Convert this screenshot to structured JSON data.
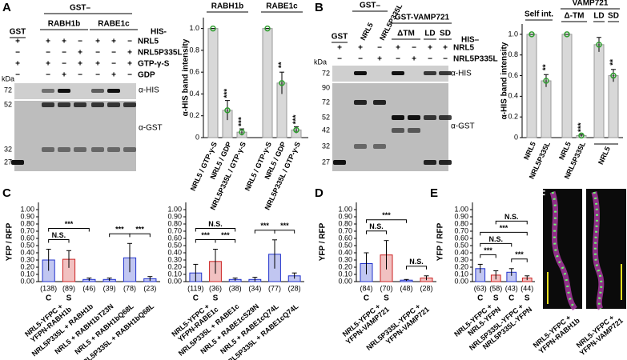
{
  "blots": [
    {
      "letter": "A",
      "top_label": "GST–",
      "column_headers": [
        "GST",
        "RABH1b",
        "RABE1c"
      ],
      "bait": "HIS-",
      "rows": [
        {
          "label": "NRL5",
          "signs": [
            "+",
            "+",
            "+",
            "−",
            "+",
            "+",
            "−"
          ]
        },
        {
          "label": "NRL5P335L",
          "signs": [
            "−",
            "−",
            "−",
            "+",
            "−",
            "−",
            "+"
          ]
        },
        {
          "label": "GTP-γ-S",
          "signs": [
            "+",
            "+",
            "−",
            "+",
            "+",
            "−",
            "+"
          ]
        },
        {
          "label": "GDP",
          "signs": [
            "−",
            "−",
            "+",
            "−",
            "−",
            "+",
            "−"
          ]
        }
      ],
      "kda": "kDa",
      "his_markers": [
        72
      ],
      "gst_markers": [
        52,
        32,
        27
      ],
      "antibodies": [
        "α-HIS",
        "α-GST"
      ]
    },
    {
      "letter": "B",
      "top_label": "GST–",
      "column_headers": [
        "GST",
        "NRL5",
        "NRL5P335L",
        "GST-VAMP721",
        "ΔTM",
        "LD",
        "SD"
      ],
      "bait": "HIS–",
      "rows": [
        {
          "label": "NRL5",
          "signs": [
            "+",
            "+",
            "−",
            "+",
            "−",
            "+",
            "+"
          ]
        },
        {
          "label": "NRL5P335L",
          "signs": [
            "−",
            "−",
            "+",
            "−",
            "+",
            "−",
            "−"
          ]
        }
      ],
      "kda": "kDa",
      "his_markers": [
        72
      ],
      "gst_markers": [
        90,
        72,
        52,
        42,
        32,
        27
      ],
      "antibodies": [
        "α-HIS",
        "α-GST"
      ]
    }
  ],
  "chart_data": [
    {
      "type": "bar",
      "group_titles": [
        "RABH1b",
        "RABE1c"
      ],
      "ylabel": "α-HIS band intensity",
      "categories": [
        "NRL5 / GTP-γ-S",
        "NRL5 / GDP",
        "NRL5P335L / GTP-γ-S",
        "NRL5 / GTP-γ-S",
        "NRL5 / GDP",
        "NRL5P335L / GTP-γ-S"
      ],
      "values": [
        1.0,
        0.25,
        0.05,
        1.0,
        0.5,
        0.07
      ],
      "errors": [
        0,
        0.09,
        0.03,
        0,
        0.1,
        0.03
      ],
      "annotations": [
        null,
        "***",
        "***",
        null,
        "**",
        "***"
      ],
      "color": "#2e9e2e",
      "ylim": [
        0,
        1.1
      ],
      "yticks": [
        0,
        0.2,
        0.4,
        0.6,
        0.8,
        {
          "value": 1,
          "label": "1.0"
        }
      ]
    },
    {
      "type": "bar",
      "group_titles": [
        "Self int.",
        "VAMP721"
      ],
      "subgroup_titles": [
        "Δ-TM",
        "LD",
        "SD"
      ],
      "ylabel": "α-HIS band intensity",
      "categories": [
        "NRL5",
        "NRL5P335L",
        "NRL5",
        "NRL5P335L",
        null,
        null
      ],
      "group_label": "NRL5",
      "values": [
        1.0,
        0.55,
        1.0,
        0.02,
        0.9,
        0.6
      ],
      "errors": [
        0,
        0.06,
        0,
        0.01,
        0.07,
        0.06
      ],
      "annotations": [
        null,
        "**",
        null,
        "***",
        null,
        "**"
      ],
      "color": "#2e9e2e",
      "ylim": [
        0,
        1.1
      ],
      "yticks": [
        0,
        0.2,
        0.4,
        0.6,
        0.8,
        {
          "value": 1,
          "label": "1.0"
        }
      ]
    },
    {
      "type": "bar",
      "panel": "C",
      "ylabel": "YFP / RFP",
      "categories": [
        [
          "NRL5-YFPC +",
          "YFPN-RABH1b"
        ],
        null,
        "NRL5P335L + RABH1b",
        "NRL5 + RABH1bT23N",
        "NRL5 + RABH1bQ68L",
        "NRL5P335L + RABH1bQ68L"
      ],
      "sublabels": [
        "C",
        "S",
        null,
        null,
        null,
        null
      ],
      "n_labels": [
        "(138)",
        "(89)",
        "(46)",
        "(39)",
        "(78)",
        "(23)"
      ],
      "values": [
        0.3,
        0.31,
        0.03,
        0.03,
        0.33,
        0.04
      ],
      "errors": [
        0.15,
        0.12,
        0.02,
        0.02,
        0.2,
        0.03
      ],
      "colors": [
        "#2233cc",
        "#cc2222",
        "#2233cc",
        "#2233cc",
        "#2233cc",
        "#2233cc"
      ],
      "brackets": [
        {
          "label": "N.S.",
          "from": 0,
          "to": 1
        },
        {
          "label": "***",
          "from": 0,
          "to": 2
        },
        {
          "label": "***",
          "from": 3,
          "to": 4
        },
        {
          "label": "***",
          "from": 4,
          "to": 5
        }
      ],
      "ylim": [
        0,
        1.1
      ],
      "yticks": [
        {
          "value": 0,
          "label": "0.00"
        },
        {
          "value": 0.1,
          "label": "0.10"
        },
        {
          "value": 0.2,
          "label": "0.20"
        },
        {
          "value": 0.3,
          "label": "0.30"
        },
        {
          "value": 0.4,
          "label": "0.40"
        },
        {
          "value": 0.5,
          "label": "0.50"
        },
        {
          "value": 0.6,
          "label": "0.60"
        },
        {
          "value": 0.7,
          "label": "0.70"
        },
        {
          "value": 0.8,
          "label": "0.80"
        },
        {
          "value": 0.9,
          "label": "0.90"
        },
        {
          "value": 1,
          "label": "1.00"
        }
      ]
    },
    {
      "type": "bar",
      "categories": [
        [
          "NRL5-YFPC +",
          "YFPN-RABE1c"
        ],
        null,
        "NRL5P335L + RABE1c",
        "NRL5 + RABE1cS29N",
        "NRL5 + RABE1cQ74L",
        "NRL5P335L + RABE1cQ74L"
      ],
      "sublabels": [
        "C",
        "S",
        null,
        null,
        null,
        null
      ],
      "n_labels": [
        "(119)",
        "(36)",
        "(38)",
        "(34)",
        "(77)",
        "(28)"
      ],
      "values": [
        0.12,
        0.28,
        0.03,
        0.03,
        0.38,
        0.08
      ],
      "errors": [
        0.12,
        0.17,
        0.02,
        0.03,
        0.2,
        0.04
      ],
      "colors": [
        "#2233cc",
        "#cc2222",
        "#2233cc",
        "#2233cc",
        "#2233cc",
        "#2233cc"
      ],
      "brackets": [
        {
          "label": "***",
          "from": 0,
          "to": 1
        },
        {
          "label": "***",
          "from": 1,
          "to": 2
        },
        {
          "label": "N.S.",
          "from": 0,
          "to": 2
        },
        {
          "label": "***",
          "from": 3,
          "to": 4
        },
        {
          "label": "***",
          "from": 4,
          "to": 5
        }
      ],
      "ylim": [
        0,
        1.1
      ],
      "yticks": [
        {
          "value": 0,
          "label": "0.00"
        },
        {
          "value": 0.1,
          "label": "0.10"
        },
        {
          "value": 0.2,
          "label": "0.20"
        },
        {
          "value": 0.3,
          "label": "0.30"
        },
        {
          "value": 0.4,
          "label": "0.40"
        },
        {
          "value": 0.5,
          "label": "0.50"
        },
        {
          "value": 0.6,
          "label": "0.60"
        },
        {
          "value": 0.7,
          "label": "0.70"
        },
        {
          "value": 0.8,
          "label": "0.80"
        },
        {
          "value": 0.9,
          "label": "0.90"
        },
        {
          "value": 1,
          "label": "1.00"
        }
      ]
    },
    {
      "type": "bar",
      "panel": "D",
      "ylabel": "YFP / RFP",
      "categories": [
        [
          "NRL5-YFPC +",
          "YFPN-VAMP721"
        ],
        null,
        [
          "NRL5P335L-YFPC +",
          "YFPN-VAMP721"
        ],
        null
      ],
      "sublabels": [
        "C",
        "S",
        null,
        null
      ],
      "n_labels": [
        "(84)",
        "(70)",
        "(48)",
        "(28)"
      ],
      "values": [
        0.25,
        0.37,
        0.02,
        0.05
      ],
      "errors": [
        0.15,
        0.2,
        0.01,
        0.03
      ],
      "colors": [
        "#2233cc",
        "#cc2222",
        "#2233cc",
        "#cc2222"
      ],
      "brackets": [
        {
          "label": "N.S.",
          "from": 0,
          "to": 1
        },
        {
          "label": "N.S.",
          "from": 2,
          "to": 3
        },
        {
          "label": "***",
          "from": 0,
          "to": 2
        }
      ],
      "ylim": [
        0,
        1.1
      ],
      "yticks": [
        {
          "value": 0,
          "label": "0.00"
        },
        {
          "value": 0.1,
          "label": "0.10"
        },
        {
          "value": 0.2,
          "label": "0.20"
        },
        {
          "value": 0.3,
          "label": "0.30"
        },
        {
          "value": 0.4,
          "label": "0.40"
        },
        {
          "value": 0.5,
          "label": "0.50"
        },
        {
          "value": 0.6,
          "label": "0.60"
        },
        {
          "value": 0.7,
          "label": "0.70"
        },
        {
          "value": 0.8,
          "label": "0.80"
        },
        {
          "value": 0.9,
          "label": "0.90"
        },
        {
          "value": 1,
          "label": "1.00"
        }
      ]
    },
    {
      "type": "bar",
      "panel": "E",
      "ylabel": "YFP / RFP",
      "categories": [
        [
          "NRL5-YFPC +",
          "NRL5-YFPN"
        ],
        null,
        [
          "NRL5P335L-YFPC +",
          "NRL5P335L-YFPN"
        ],
        null
      ],
      "sublabels": [
        "C",
        "S",
        "C",
        "S"
      ],
      "n_labels": [
        "(63)",
        "(58)",
        "(43)",
        "(44)"
      ],
      "values": [
        0.18,
        0.09,
        0.13,
        0.05
      ],
      "errors": [
        0.06,
        0.06,
        0.05,
        0.03
      ],
      "colors": [
        "#2233cc",
        "#cc2222",
        "#2233cc",
        "#cc2222"
      ],
      "brackets": [
        {
          "label": "***",
          "from": 0,
          "to": 1
        },
        {
          "label": "***",
          "from": 2,
          "to": 3
        },
        {
          "label": "N.S.",
          "from": 0,
          "to": 2
        },
        {
          "label": "***",
          "from": 0,
          "to": 3
        },
        {
          "label": "N.S.",
          "from": 1,
          "to": 3
        }
      ],
      "ylim": [
        0,
        1.1
      ],
      "yticks": [
        {
          "value": 0,
          "label": "0.00"
        },
        {
          "value": 0.1,
          "label": "0.10"
        },
        {
          "value": 0.2,
          "label": "0.20"
        },
        {
          "value": 0.3,
          "label": "0.30"
        },
        {
          "value": 0.4,
          "label": "0.40"
        },
        {
          "value": 0.5,
          "label": "0.50"
        },
        {
          "value": 0.6,
          "label": "0.60"
        },
        {
          "value": 0.7,
          "label": "0.70"
        },
        {
          "value": 0.8,
          "label": "0.80"
        },
        {
          "value": 0.9,
          "label": "0.90"
        },
        {
          "value": 1,
          "label": "1.00"
        }
      ]
    }
  ],
  "images": {
    "letter": "F",
    "labels": [
      [
        "NRL5-YFPC +",
        "YFPN-RABH1b"
      ],
      [
        "NRL5-YFPC +",
        "YFPN-VAMP721"
      ]
    ]
  }
}
